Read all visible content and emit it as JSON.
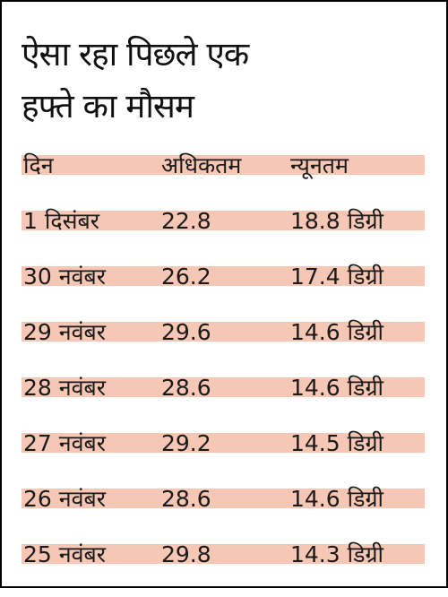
{
  "title": {
    "line1": "ऐसा रहा पिछले एक",
    "line2": "हफ्ते का मौसम"
  },
  "colors": {
    "row_band": "#f7c7b6",
    "border": "#000000",
    "text": "#1a1a1a"
  },
  "table": {
    "headers": {
      "day": "दिन",
      "max": "अधिकतम",
      "min": "न्यूनतम"
    },
    "rows": [
      {
        "day": "1 दिसंबर",
        "max": "22.8",
        "min": "18.8 डिग्री"
      },
      {
        "day": "30 नवंबर",
        "max": "26.2",
        "min": "17.4 डिग्री"
      },
      {
        "day": "29 नवंबर",
        "max": "29.6",
        "min": "14.6 डिग्री"
      },
      {
        "day": "28 नवंबर",
        "max": "28.6",
        "min": "14.6 डिग्री"
      },
      {
        "day": "27 नवंबर",
        "max": "29.2",
        "min": "14.5 डिग्री"
      },
      {
        "day": "26 नवंबर",
        "max": "28.6",
        "min": "14.6 डिग्री"
      },
      {
        "day": "25 नवंबर",
        "max": "29.8",
        "min": "14.3 डिग्री"
      }
    ]
  }
}
